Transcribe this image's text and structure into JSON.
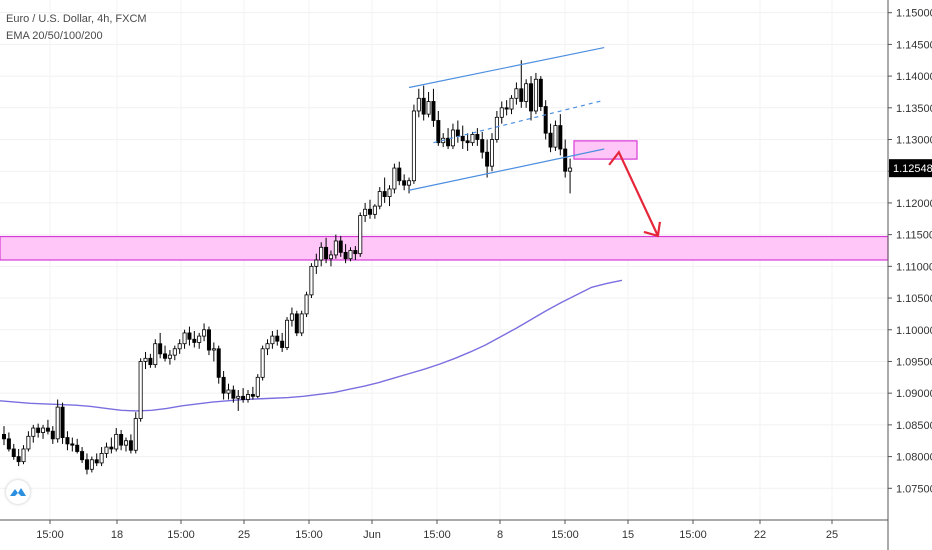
{
  "legend": {
    "symbol_line": "Euro / U.S. Dollar, 4h, FXCM",
    "indicator_line": "EMA 20/50/100/200"
  },
  "colors": {
    "up": "#ffffff",
    "down": "#000000",
    "ema": "#7b6fe0",
    "channel": "#4d8fe0",
    "zone_fill": "#ffc6f7",
    "zone_border": "#d63ad6",
    "arrow": "#e5263b",
    "price_label_bg": "#000000"
  },
  "icons": {
    "logo": "tradingview-cloud-icon"
  },
  "chart_data": {
    "type": "candlestick",
    "title": "Euro / U.S. Dollar, 4h, FXCM",
    "ylim": [
      1.07,
      1.152
    ],
    "y_ticks": [
      "1.15000",
      "1.14500",
      "1.14000",
      "1.13500",
      "1.13000",
      "1.12500",
      "1.12000",
      "1.11500",
      "1.11000",
      "1.10500",
      "1.10000",
      "1.09500",
      "1.09000",
      "1.08500",
      "1.08000",
      "1.07500"
    ],
    "x_ticks": [
      "15:00",
      "18",
      "15:00",
      "25",
      "15:00",
      "Jun",
      "15:00",
      "8",
      "15:00",
      "15",
      "15:00",
      "22",
      "25"
    ],
    "last_price": "1.12548",
    "ohlc": [
      [
        1.0835,
        1.0848,
        1.0818,
        1.0828
      ],
      [
        1.0828,
        1.0838,
        1.0808,
        1.0812
      ],
      [
        1.0812,
        1.082,
        1.0795,
        1.08
      ],
      [
        1.08,
        1.0812,
        1.0785,
        1.0792
      ],
      [
        1.0792,
        1.0818,
        1.0788,
        1.0812
      ],
      [
        1.0812,
        1.084,
        1.0808,
        1.0832
      ],
      [
        1.0832,
        1.085,
        1.0822,
        1.0845
      ],
      [
        1.0845,
        1.0852,
        1.083,
        1.0838
      ],
      [
        1.0838,
        1.085,
        1.0828,
        1.0845
      ],
      [
        1.0845,
        1.0858,
        1.0835,
        1.084
      ],
      [
        1.084,
        1.0848,
        1.082,
        1.0828
      ],
      [
        1.0828,
        1.089,
        1.0822,
        1.0878
      ],
      [
        1.0878,
        1.0885,
        1.082,
        1.083
      ],
      [
        1.083,
        1.084,
        1.081,
        1.082
      ],
      [
        1.082,
        1.083,
        1.0808,
        1.0818
      ],
      [
        1.0818,
        1.0828,
        1.0805,
        1.0808
      ],
      [
        1.0808,
        1.0815,
        1.079,
        1.0795
      ],
      [
        1.0795,
        1.0805,
        1.0772,
        1.078
      ],
      [
        1.078,
        1.08,
        1.0775,
        1.0795
      ],
      [
        1.0795,
        1.0805,
        1.0785,
        1.079
      ],
      [
        1.079,
        1.0815,
        1.0785,
        1.0805
      ],
      [
        1.0805,
        1.0822,
        1.0798,
        1.0815
      ],
      [
        1.0815,
        1.083,
        1.0805,
        1.0812
      ],
      [
        1.0812,
        1.0845,
        1.0808,
        1.0835
      ],
      [
        1.0835,
        1.0842,
        1.081,
        1.0818
      ],
      [
        1.0818,
        1.083,
        1.0808,
        1.0825
      ],
      [
        1.0825,
        1.0835,
        1.0805,
        1.081
      ],
      [
        1.081,
        1.087,
        1.0805,
        1.086
      ],
      [
        1.086,
        1.0955,
        1.0855,
        1.095
      ],
      [
        1.095,
        1.0965,
        1.0938,
        1.0955
      ],
      [
        1.0955,
        1.0962,
        1.094,
        1.0945
      ],
      [
        1.0945,
        1.0985,
        1.094,
        1.0978
      ],
      [
        1.0978,
        1.0995,
        1.0955,
        1.0962
      ],
      [
        1.0962,
        1.0975,
        1.095,
        1.0955
      ],
      [
        1.0955,
        1.0968,
        1.0945,
        1.096
      ],
      [
        1.096,
        1.0975,
        1.0952,
        1.097
      ],
      [
        1.097,
        1.0985,
        1.0962,
        1.0978
      ],
      [
        1.0978,
        1.1,
        1.097,
        1.0995
      ],
      [
        1.0995,
        1.1005,
        1.0975,
        1.0985
      ],
      [
        1.0985,
        1.0998,
        1.0972,
        1.098
      ],
      [
        1.098,
        1.0995,
        1.097,
        1.099
      ],
      [
        1.099,
        1.101,
        1.0982,
        1.1
      ],
      [
        1.1,
        1.1005,
        1.096,
        1.0968
      ],
      [
        1.0968,
        1.098,
        1.095,
        1.097
      ],
      [
        1.097,
        1.0975,
        1.0915,
        1.0925
      ],
      [
        1.0925,
        1.0935,
        1.089,
        1.09
      ],
      [
        1.09,
        1.0915,
        1.089,
        1.0905
      ],
      [
        1.0905,
        1.0912,
        1.0885,
        1.0892
      ],
      [
        1.0892,
        1.0905,
        1.0872,
        1.0895
      ],
      [
        1.0895,
        1.0908,
        1.0885,
        1.089
      ],
      [
        1.089,
        1.0905,
        1.0885,
        1.0898
      ],
      [
        1.0898,
        1.091,
        1.089,
        1.0895
      ],
      [
        1.0895,
        1.093,
        1.0892,
        1.0925
      ],
      [
        1.0925,
        1.0975,
        1.092,
        1.097
      ],
      [
        1.097,
        1.0985,
        1.096,
        1.0978
      ],
      [
        1.0978,
        1.0998,
        1.097,
        1.099
      ],
      [
        1.099,
        1.1,
        1.0975,
        1.0982
      ],
      [
        1.0982,
        1.0995,
        1.0965,
        1.0972
      ],
      [
        1.0972,
        1.102,
        1.0968,
        1.1015
      ],
      [
        1.1015,
        1.1035,
        1.1005,
        1.1025
      ],
      [
        1.1025,
        1.103,
        1.099,
        1.0995
      ],
      [
        1.0995,
        1.103,
        1.099,
        1.1025
      ],
      [
        1.1025,
        1.106,
        1.102,
        1.1055
      ],
      [
        1.1055,
        1.1105,
        1.105,
        1.11
      ],
      [
        1.11,
        1.112,
        1.1088,
        1.111
      ],
      [
        1.111,
        1.1138,
        1.11,
        1.113
      ],
      [
        1.113,
        1.1145,
        1.1105,
        1.1112
      ],
      [
        1.1112,
        1.1125,
        1.11,
        1.1118
      ],
      [
        1.1118,
        1.115,
        1.1112,
        1.114
      ],
      [
        1.114,
        1.1148,
        1.1115,
        1.1122
      ],
      [
        1.1122,
        1.1135,
        1.1105,
        1.1112
      ],
      [
        1.1112,
        1.113,
        1.1108,
        1.1125
      ],
      [
        1.1125,
        1.1132,
        1.111,
        1.112
      ],
      [
        1.112,
        1.1185,
        1.1115,
        1.118
      ],
      [
        1.118,
        1.12,
        1.117,
        1.119
      ],
      [
        1.119,
        1.1205,
        1.1175,
        1.1182
      ],
      [
        1.1182,
        1.1198,
        1.1175,
        1.1195
      ],
      [
        1.1195,
        1.1225,
        1.119,
        1.1218
      ],
      [
        1.1218,
        1.124,
        1.12,
        1.121
      ],
      [
        1.121,
        1.1228,
        1.1195,
        1.1222
      ],
      [
        1.1222,
        1.1262,
        1.1215,
        1.1255
      ],
      [
        1.1255,
        1.1265,
        1.1228,
        1.1235
      ],
      [
        1.1235,
        1.1245,
        1.122,
        1.1228
      ],
      [
        1.1228,
        1.124,
        1.1215,
        1.1235
      ],
      [
        1.1235,
        1.1355,
        1.123,
        1.1345
      ],
      [
        1.1345,
        1.138,
        1.1335,
        1.1365
      ],
      [
        1.1365,
        1.1385,
        1.133,
        1.134
      ],
      [
        1.134,
        1.1375,
        1.1335,
        1.136
      ],
      [
        1.136,
        1.138,
        1.132,
        1.133
      ],
      [
        1.133,
        1.1345,
        1.129,
        1.1295
      ],
      [
        1.1295,
        1.131,
        1.1288,
        1.1302
      ],
      [
        1.1302,
        1.1318,
        1.1285,
        1.129
      ],
      [
        1.129,
        1.1325,
        1.1285,
        1.1315
      ],
      [
        1.1315,
        1.133,
        1.1295,
        1.1305
      ],
      [
        1.1305,
        1.1322,
        1.1285,
        1.1298
      ],
      [
        1.1298,
        1.131,
        1.1282,
        1.1295
      ],
      [
        1.1295,
        1.1312,
        1.129,
        1.1308
      ],
      [
        1.1308,
        1.1318,
        1.129,
        1.13
      ],
      [
        1.13,
        1.1312,
        1.127,
        1.128
      ],
      [
        1.128,
        1.13,
        1.124,
        1.1258
      ],
      [
        1.1258,
        1.131,
        1.125,
        1.13
      ],
      [
        1.13,
        1.1345,
        1.1295,
        1.1335
      ],
      [
        1.1335,
        1.136,
        1.1325,
        1.135
      ],
      [
        1.135,
        1.1362,
        1.1338,
        1.1348
      ],
      [
        1.1348,
        1.137,
        1.134,
        1.1365
      ],
      [
        1.1365,
        1.139,
        1.1355,
        1.138
      ],
      [
        1.138,
        1.1425,
        1.135,
        1.136
      ],
      [
        1.136,
        1.1395,
        1.135,
        1.1388
      ],
      [
        1.1388,
        1.14,
        1.133,
        1.1345
      ],
      [
        1.1345,
        1.1405,
        1.134,
        1.1395
      ],
      [
        1.1395,
        1.14,
        1.1345,
        1.1352
      ],
      [
        1.1352,
        1.1362,
        1.13,
        1.131
      ],
      [
        1.131,
        1.1325,
        1.128,
        1.1288
      ],
      [
        1.1288,
        1.133,
        1.1282,
        1.1322
      ],
      [
        1.1322,
        1.134,
        1.1275,
        1.1285
      ],
      [
        1.1285,
        1.13,
        1.124,
        1.125
      ],
      [
        1.125,
        1.127,
        1.1215,
        1.1255
      ]
    ],
    "ema_200": [
      1.0888,
      1.0886,
      1.0884,
      1.0883,
      1.0882,
      1.0881,
      1.0879,
      1.0876,
      1.0873,
      1.0872,
      1.0873,
      1.0876,
      1.088,
      1.0883,
      1.0886,
      1.0888,
      1.089,
      1.0891,
      1.0892,
      1.0893,
      1.0895,
      1.0898,
      1.0901,
      1.0906,
      1.0911,
      1.0917,
      1.0924,
      1.0931,
      1.0938,
      1.0946,
      1.0955,
      1.0965,
      1.0976,
      1.0989,
      1.1002,
      1.1016,
      1.103,
      1.1043,
      1.1055,
      1.1067,
      1.1073,
      1.1078
    ],
    "zones": [
      {
        "from": 1.111,
        "to": 1.1147
      },
      {
        "from": 1.1277,
        "to": 1.129
      }
    ],
    "channel": {
      "upper": [
        [
          83,
          1.1382
        ],
        [
          123,
          1.1445
        ]
      ],
      "middle": [
        [
          88,
          1.1295
        ],
        [
          123,
          1.1362
        ]
      ],
      "lower": [
        [
          83,
          1.122
        ],
        [
          123,
          1.1285
        ]
      ]
    },
    "arrow": {
      "from": [
        124,
        1.126
      ],
      "mid": [
        126,
        1.128
      ],
      "to": [
        134,
        1.1148
      ]
    }
  }
}
